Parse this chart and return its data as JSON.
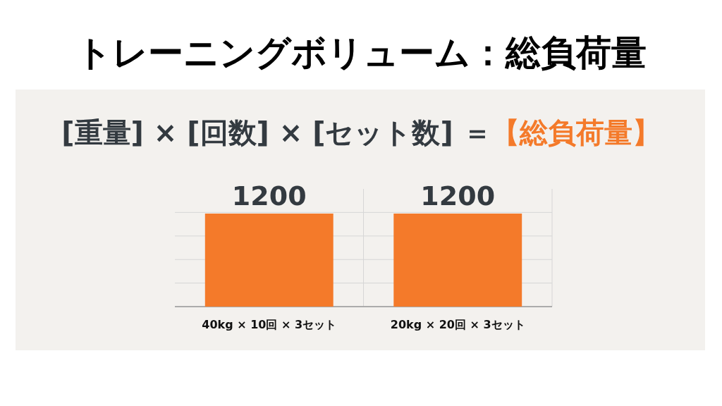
{
  "chart_data": {
    "type": "bar",
    "title": "トレーニングボリューム：総負荷量",
    "subtitle": "[重量] × [回数] × [セット数] ＝【総負荷量】",
    "categories": [
      "40kg × 10回 × 3セット",
      "20kg × 20回 × 3セット"
    ],
    "values": [
      1200,
      1200
    ],
    "color": "#f47a2a",
    "data_labels": true,
    "grid": true
  }
}
